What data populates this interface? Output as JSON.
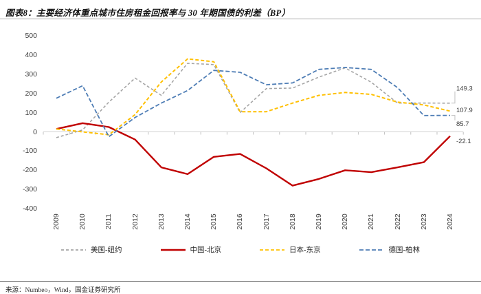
{
  "header": {
    "title": "图表8：主要经济体重点城市住房租金回报率与 30 年期国债的利差（BP）"
  },
  "footer": {
    "source": "来源：Numbeo，Wind，国金证券研究所"
  },
  "chart_data": {
    "type": "line",
    "title": "主要经济体重点城市住房租金回报率与 30 年期国债的利差（BP）",
    "xlabel": "",
    "ylabel": "",
    "ylim": [
      -400,
      500
    ],
    "yticks": [
      500,
      400,
      300,
      200,
      100,
      0,
      -100,
      -200,
      -300,
      -400
    ],
    "grid": false,
    "legend_position": "bottom",
    "categories": [
      "2009",
      "2010",
      "2011",
      "2012",
      "2013",
      "2014",
      "2015",
      "2016",
      "2017",
      "2018",
      "2019",
      "2020",
      "2021",
      "2022",
      "2023",
      "2024"
    ],
    "series": [
      {
        "name": "美国-纽约",
        "color": "#A5A5A5",
        "style": "dashed",
        "values": [
          -30,
          10,
          155,
          280,
          190,
          357,
          350,
          100,
          225,
          228,
          285,
          333,
          258,
          150,
          150,
          149.3
        ],
        "end_label": "149.3"
      },
      {
        "name": "中国-北京",
        "color": "#C00000",
        "style": "solid",
        "values": [
          15,
          45,
          25,
          -40,
          -185,
          -220,
          -130,
          -115,
          -190,
          -280,
          -245,
          -200,
          -210,
          -185,
          -158,
          -22.1
        ],
        "end_label": "-22.1"
      },
      {
        "name": "日本-东京",
        "color": "#FFC000",
        "style": "dashed",
        "values": [
          15,
          0,
          -15,
          90,
          260,
          380,
          365,
          105,
          105,
          150,
          190,
          205,
          195,
          155,
          140,
          107.9
        ],
        "end_label": "107.9"
      },
      {
        "name": "德国-柏林",
        "color": "#4E7DB5",
        "style": "dashed",
        "values": [
          175,
          240,
          -25,
          75,
          150,
          215,
          320,
          310,
          245,
          255,
          325,
          335,
          325,
          230,
          85,
          85.7
        ],
        "end_label": "85.7"
      }
    ]
  }
}
